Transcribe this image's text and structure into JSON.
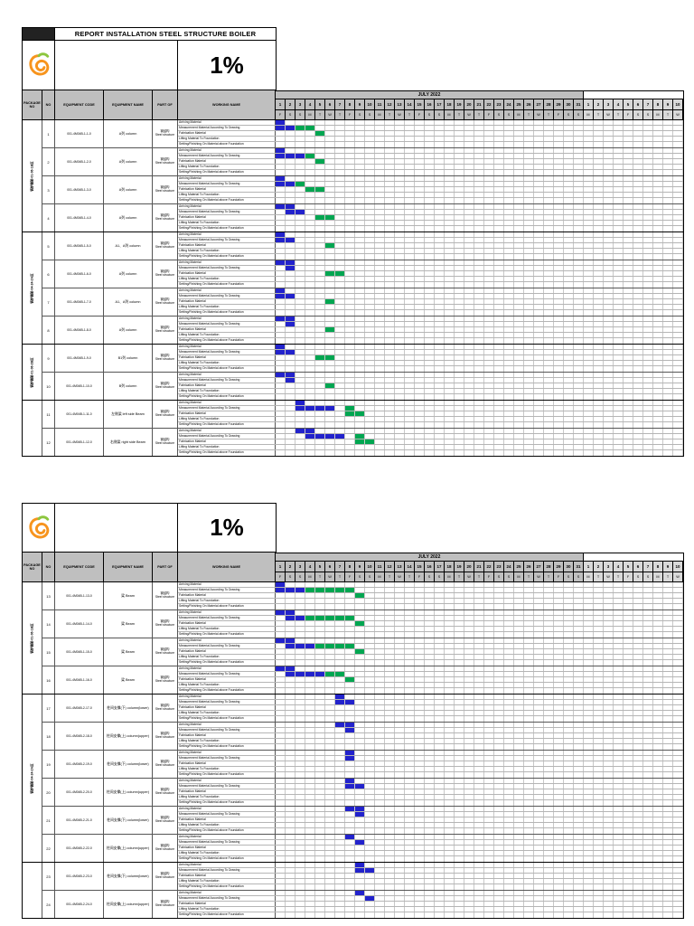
{
  "report": {
    "title": "REPORT INSTALLATION STEEL STRUCTURE BOILER",
    "progress_percent": "1%",
    "columns": {
      "package": "PACKAGE NO",
      "no": "NO",
      "code": "EQUIPMENT CODE",
      "name": "EQUIPMENT NAME",
      "part": "PART OF",
      "working": "WORKING NAME"
    },
    "working_steps": [
      "Arriving Material",
      "Measurement Material According To Drawing",
      "Fabrication Material",
      "Lifting Material To Foundation",
      "Setting/Finishing On Material above Foundation"
    ],
    "calendar": {
      "month_label": "JULY 2022",
      "july_days": [
        1,
        2,
        3,
        4,
        5,
        6,
        7,
        8,
        9,
        10,
        11,
        12,
        13,
        14,
        15,
        16,
        17,
        18,
        19,
        20,
        21,
        22,
        23,
        24,
        25,
        26,
        27,
        28,
        29,
        30,
        31
      ],
      "july_day_letters": [
        "F",
        "S",
        "S",
        "M",
        "T",
        "W",
        "T",
        "F",
        "S",
        "S",
        "M",
        "T",
        "W",
        "T",
        "F",
        "S",
        "S",
        "M",
        "T",
        "W",
        "T",
        "F",
        "S",
        "S",
        "M",
        "T",
        "W",
        "T",
        "F",
        "S",
        "S"
      ],
      "next_days": [
        1,
        2,
        3,
        4,
        5,
        6,
        7,
        8,
        9,
        10
      ],
      "next_day_letters": [
        "M",
        "T",
        "W",
        "T",
        "F",
        "S",
        "S",
        "M",
        "T",
        "W"
      ]
    },
    "colors": {
      "plan": "#2222cc",
      "actual": "#00a651",
      "header": "#bfbfbf",
      "header_light": "#d9d9d9"
    }
  },
  "tables": [
    {
      "title_visible": true,
      "groups": [
        {
          "label": "锅炉钢架-01-06-1B区",
          "rows": 4
        },
        {
          "label": "锅炉钢架-04-24-2A区",
          "rows": 4
        },
        {
          "label": "锅炉钢架-01-06-2B区",
          "rows": 2
        },
        {
          "label": "",
          "rows": 2
        }
      ],
      "rows": [
        {
          "no": "1",
          "code": "001-4M04B-1-1-0",
          "name": "A列 column",
          "part_cn": "钢结构",
          "part_en": "Steel structure",
          "bars": [
            [
              [
                1,
                1,
                "b"
              ]
            ],
            [
              [
                1,
                2,
                "b"
              ],
              [
                3,
                4,
                "g"
              ]
            ],
            [
              [
                5,
                5,
                "g"
              ]
            ],
            [],
            []
          ]
        },
        {
          "no": "2",
          "code": "001-4M04B-1-2-0",
          "name": "A列 column",
          "part_cn": "钢结构",
          "part_en": "Steel structure",
          "bars": [
            [
              [
                1,
                1,
                "b"
              ]
            ],
            [
              [
                1,
                3,
                "b"
              ],
              [
                4,
                4,
                "g"
              ]
            ],
            [
              [
                5,
                5,
                "g"
              ]
            ],
            [],
            []
          ]
        },
        {
          "no": "3",
          "code": "001-4M04B-1-3-0",
          "name": "A列 column",
          "part_cn": "钢结构",
          "part_en": "Steel structure",
          "bars": [
            [
              [
                1,
                1,
                "b"
              ]
            ],
            [
              [
                1,
                2,
                "b"
              ],
              [
                3,
                3,
                "g"
              ]
            ],
            [
              [
                4,
                5,
                "g"
              ]
            ],
            [],
            []
          ]
        },
        {
          "no": "4",
          "code": "001-4M04B-1-4-0",
          "name": "A列 column",
          "part_cn": "钢结构",
          "part_en": "Steel structure",
          "bars": [
            [
              [
                1,
                2,
                "b"
              ]
            ],
            [
              [
                2,
                3,
                "b"
              ]
            ],
            [
              [
                5,
                6,
                "g"
              ]
            ],
            [],
            []
          ]
        },
        {
          "no": "5",
          "code": "001-4M04B-1-5-0",
          "name": "A1、A列 column",
          "part_cn": "钢结构",
          "part_en": "Steel structure",
          "bars": [
            [
              [
                1,
                1,
                "b"
              ]
            ],
            [
              [
                1,
                2,
                "b"
              ]
            ],
            [
              [
                6,
                6,
                "g"
              ]
            ],
            [],
            []
          ]
        },
        {
          "no": "6",
          "code": "001-4M04B-1-6-0",
          "name": "A列 column",
          "part_cn": "钢结构",
          "part_en": "Steel structure",
          "bars": [
            [
              [
                1,
                2,
                "b"
              ]
            ],
            [
              [
                2,
                2,
                "b"
              ]
            ],
            [
              [
                6,
                7,
                "g"
              ]
            ],
            [],
            []
          ]
        },
        {
          "no": "7",
          "code": "001-4M04B-1-7-0",
          "name": "A1、A列 column",
          "part_cn": "钢结构",
          "part_en": "Steel structure",
          "bars": [
            [
              [
                1,
                1,
                "b"
              ]
            ],
            [
              [
                1,
                2,
                "b"
              ]
            ],
            [
              [
                6,
                6,
                "g"
              ]
            ],
            [],
            []
          ]
        },
        {
          "no": "8",
          "code": "001-4M04B-1-8-0",
          "name": "A列 column",
          "part_cn": "钢结构",
          "part_en": "Steel structure",
          "bars": [
            [
              [
                1,
                2,
                "b"
              ]
            ],
            [
              [
                2,
                2,
                "b"
              ]
            ],
            [
              [
                6,
                6,
                "g"
              ]
            ],
            [],
            []
          ]
        },
        {
          "no": "9",
          "code": "001-4M04B-1-9-0",
          "name": "B1列 column",
          "part_cn": "钢结构",
          "part_en": "Steel structure",
          "bars": [
            [
              [
                1,
                1,
                "b"
              ]
            ],
            [
              [
                1,
                2,
                "b"
              ]
            ],
            [
              [
                5,
                6,
                "g"
              ]
            ],
            [],
            []
          ]
        },
        {
          "no": "10",
          "code": "001-4M04B-1-10-0",
          "name": "B列 column",
          "part_cn": "钢结构",
          "part_en": "Steel structure",
          "bars": [
            [
              [
                1,
                2,
                "b"
              ]
            ],
            [
              [
                2,
                2,
                "b"
              ]
            ],
            [
              [
                6,
                6,
                "g"
              ]
            ],
            [],
            []
          ]
        },
        {
          "no": "11",
          "code": "001-4M04B-1-11-0",
          "name": "左侧梁 left side Beam",
          "part_cn": "钢结构",
          "part_en": "Steel structure",
          "bars": [
            [
              [
                3,
                3,
                "b"
              ]
            ],
            [
              [
                3,
                6,
                "b"
              ],
              [
                8,
                8,
                "g"
              ]
            ],
            [
              [
                8,
                9,
                "g"
              ]
            ],
            [],
            []
          ]
        },
        {
          "no": "12",
          "code": "001-4M04B-1-12-0",
          "name": "右侧梁 right side Beam",
          "part_cn": "钢结构",
          "part_en": "Steel structure",
          "bars": [
            [
              [
                3,
                4,
                "b"
              ]
            ],
            [
              [
                4,
                7,
                "b"
              ],
              [
                9,
                9,
                "g"
              ]
            ],
            [
              [
                9,
                10,
                "g"
              ]
            ],
            [],
            []
          ]
        }
      ]
    },
    {
      "title_visible": false,
      "groups": [
        {
          "label": "锅炉钢架-01-06-1B区",
          "rows": 4
        },
        {
          "label": "锅炉钢架-04-24-2A区",
          "rows": 6
        },
        {
          "label": "",
          "rows": 2
        }
      ],
      "rows": [
        {
          "no": "13",
          "code": "001-4M04B-1-13-0",
          "name": "梁 Beam",
          "part_cn": "钢结构",
          "part_en": "Steel structure",
          "bars": [
            [
              [
                1,
                1,
                "b"
              ]
            ],
            [
              [
                1,
                3,
                "b"
              ],
              [
                4,
                8,
                "g"
              ]
            ],
            [
              [
                9,
                9,
                "g"
              ]
            ],
            [],
            []
          ]
        },
        {
          "no": "14",
          "code": "001-4M04B-1-14-0",
          "name": "梁 Beam",
          "part_cn": "钢结构",
          "part_en": "Steel structure",
          "bars": [
            [
              [
                1,
                2,
                "b"
              ]
            ],
            [
              [
                2,
                3,
                "b"
              ],
              [
                4,
                8,
                "g"
              ]
            ],
            [
              [
                9,
                9,
                "g"
              ]
            ],
            [],
            []
          ]
        },
        {
          "no": "15",
          "code": "001-4M04B-1-15-0",
          "name": "梁 Beam",
          "part_cn": "钢结构",
          "part_en": "Steel structure",
          "bars": [
            [
              [
                1,
                2,
                "b"
              ]
            ],
            [
              [
                2,
                4,
                "b"
              ],
              [
                5,
                8,
                "g"
              ]
            ],
            [
              [
                9,
                9,
                "g"
              ]
            ],
            [],
            []
          ]
        },
        {
          "no": "16",
          "code": "001-4M04B-1-16-0",
          "name": "梁 Beam",
          "part_cn": "钢结构",
          "part_en": "Steel structure",
          "bars": [
            [
              [
                1,
                2,
                "b"
              ]
            ],
            [
              [
                2,
                5,
                "b"
              ],
              [
                6,
                7,
                "g"
              ]
            ],
            [
              [
                8,
                8,
                "g"
              ]
            ],
            [],
            []
          ]
        },
        {
          "no": "17",
          "code": "001-4M04B-2-17-0",
          "name": "柱间支撑(下) column(lower)",
          "part_cn": "钢结构",
          "part_en": "Steel structure",
          "bars": [
            [
              [
                7,
                7,
                "b"
              ]
            ],
            [
              [
                7,
                8,
                "b"
              ]
            ],
            [],
            [],
            []
          ]
        },
        {
          "no": "18",
          "code": "001-4M04B-2-18-0",
          "name": "柱间支撑(上) column(upper)",
          "part_cn": "钢结构",
          "part_en": "Steel structure",
          "bars": [
            [
              [
                7,
                8,
                "b"
              ]
            ],
            [
              [
                8,
                8,
                "b"
              ]
            ],
            [],
            [],
            []
          ]
        },
        {
          "no": "19",
          "code": "001-4M04B-2-19-0",
          "name": "柱间支撑(下) column(lower)",
          "part_cn": "钢结构",
          "part_en": "Steel structure",
          "bars": [
            [
              [
                8,
                8,
                "b"
              ]
            ],
            [
              [
                8,
                8,
                "b"
              ]
            ],
            [],
            [],
            []
          ]
        },
        {
          "no": "20",
          "code": "001-4M04B-2-20-0",
          "name": "柱间支撑(上) column(upper)",
          "part_cn": "钢结构",
          "part_en": "Steel structure",
          "bars": [
            [
              [
                8,
                8,
                "b"
              ]
            ],
            [
              [
                8,
                9,
                "b"
              ]
            ],
            [],
            [],
            []
          ]
        },
        {
          "no": "21",
          "code": "001-4M04B-2-21-0",
          "name": "柱间支撑(下) column(lower)",
          "part_cn": "钢结构",
          "part_en": "Steel structure",
          "bars": [
            [
              [
                8,
                9,
                "b"
              ]
            ],
            [
              [
                9,
                9,
                "b"
              ]
            ],
            [],
            [],
            []
          ]
        },
        {
          "no": "22",
          "code": "001-4M04B-2-22-0",
          "name": "柱间支撑(上) column(upper)",
          "part_cn": "钢结构",
          "part_en": "Steel structure",
          "bars": [
            [
              [
                8,
                8,
                "b"
              ]
            ],
            [
              [
                9,
                9,
                "b"
              ]
            ],
            [],
            [],
            []
          ]
        },
        {
          "no": "23",
          "code": "001-4M04B-2-23-0",
          "name": "柱间支撑(下) column(lower)",
          "part_cn": "钢结构",
          "part_en": "Steel structure",
          "bars": [
            [
              [
                9,
                9,
                "b"
              ]
            ],
            [
              [
                9,
                10,
                "b"
              ]
            ],
            [],
            [],
            []
          ]
        },
        {
          "no": "24",
          "code": "001-4M04B-2-24-0",
          "name": "柱间支撑(上) column(upper)",
          "part_cn": "钢结构",
          "part_en": "Steel structure",
          "bars": [
            [
              [
                9,
                9,
                "b"
              ]
            ],
            [
              [
                10,
                10,
                "b"
              ]
            ],
            [],
            [],
            []
          ]
        }
      ]
    }
  ]
}
